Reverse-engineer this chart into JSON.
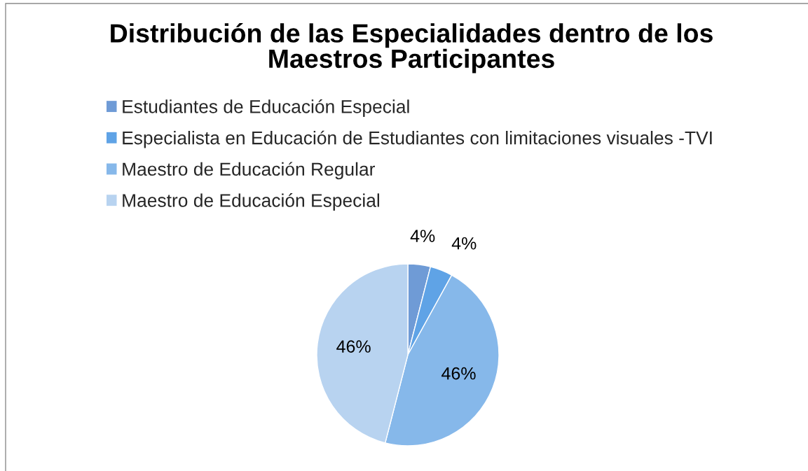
{
  "chart_data": {
    "type": "pie",
    "title": "Distribución de las Especialidades dentro de los\nMaestros Participantes",
    "categories": [
      "Estudiantes de Educación Especial",
      "Especialista en Educación de Estudiantes con limitaciones visuales -TVI",
      "Maestro de Educación Regular",
      "Maestro de Educación Especial"
    ],
    "values": [
      4,
      4,
      46,
      46
    ],
    "value_labels": [
      "4%",
      "4%",
      "46%",
      "46%"
    ],
    "colors": [
      "#6f9bd6",
      "#5fa3e6",
      "#86b8ea",
      "#b8d3f0"
    ],
    "legend": "top"
  }
}
